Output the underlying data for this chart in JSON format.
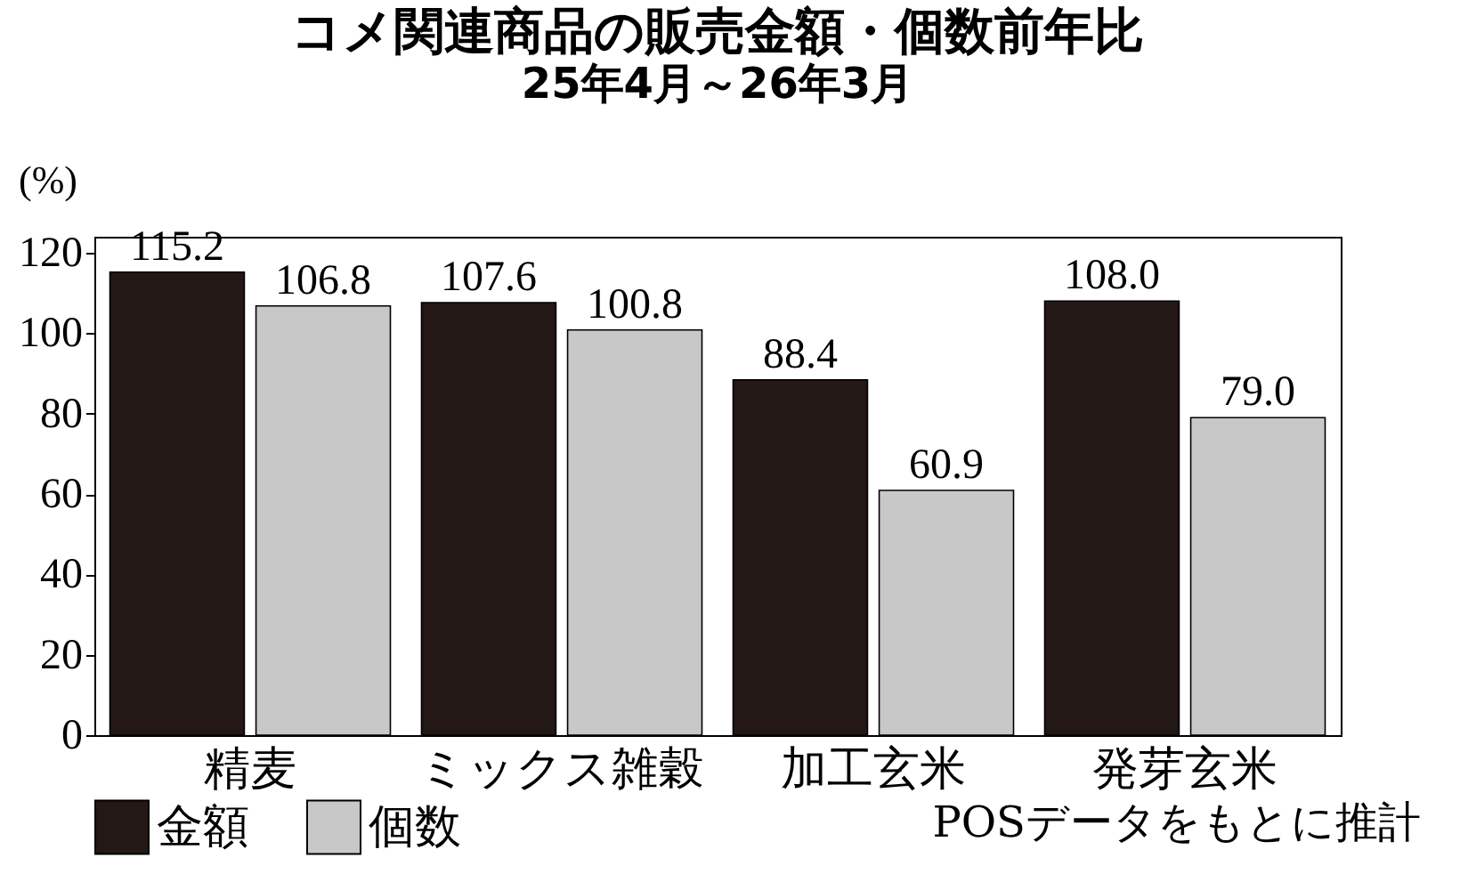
{
  "chart_data": {
    "type": "bar",
    "title": "コメ関連商品の販売金額・個数前年比",
    "subtitle": "25年4月～26年3月",
    "ylabel": "(%)",
    "categories": [
      "精麦",
      "ミックス雑穀",
      "加工玄米",
      "発芽玄米"
    ],
    "series": [
      {
        "name": "金額",
        "color": "#231815",
        "values": [
          115.2,
          107.6,
          88.4,
          108.0
        ],
        "value_labels": [
          "115.2",
          "107.6",
          "88.4",
          "108.0"
        ]
      },
      {
        "name": "個数",
        "color": "#c8c8c8",
        "values": [
          106.8,
          100.8,
          60.9,
          79.0
        ],
        "value_labels": [
          "106.8",
          "100.8",
          "60.9",
          "79.0"
        ]
      }
    ],
    "ylim": [
      0,
      124
    ],
    "yticks": [
      0,
      20,
      40,
      60,
      80,
      100,
      120
    ],
    "grid": false,
    "legend": "bottom",
    "annotations": [
      "POSデータをもとに推計"
    ]
  }
}
